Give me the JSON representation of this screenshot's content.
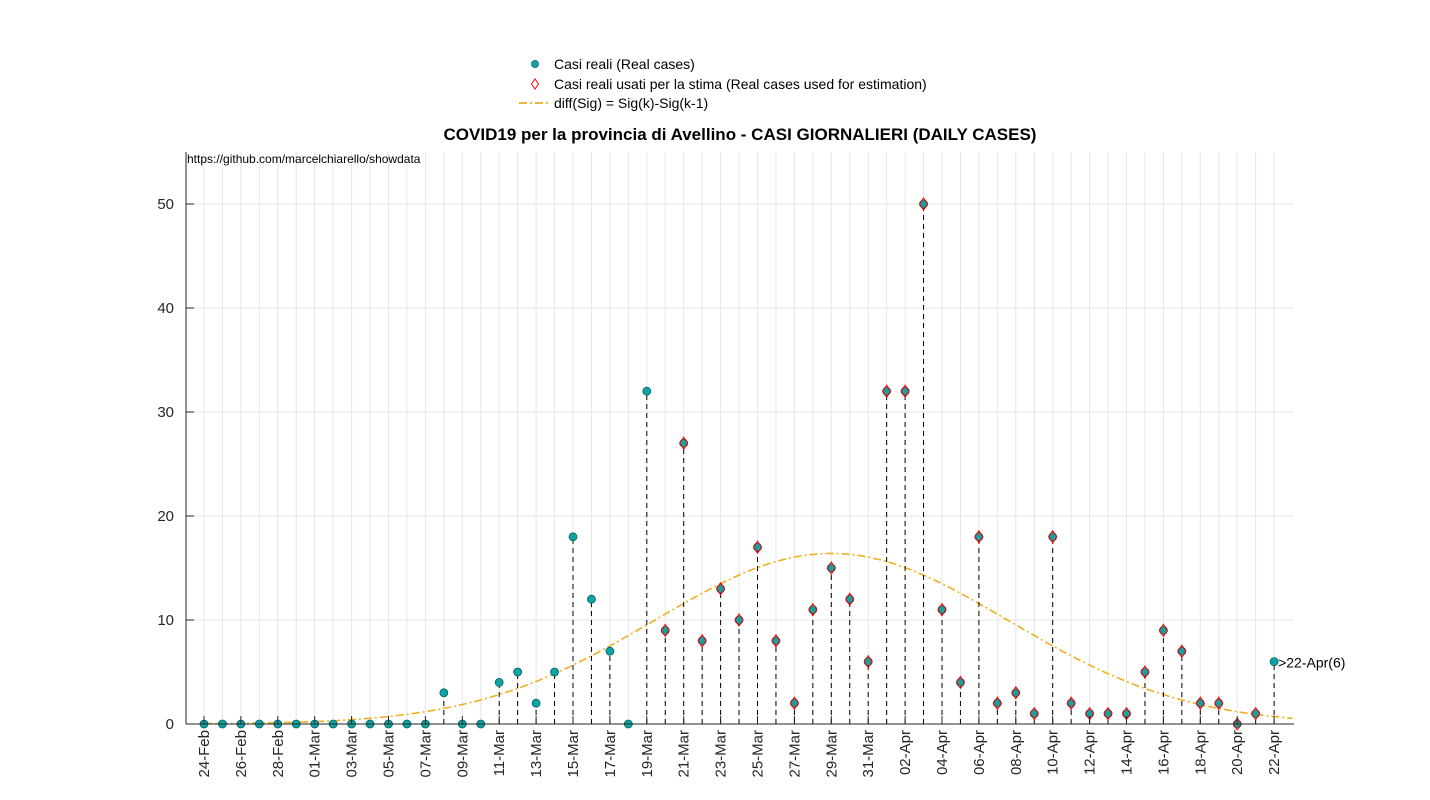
{
  "chart_data": {
    "type": "scatter",
    "title": "COVID19 per la provincia di Avellino - CASI GIORNALIERI (DAILY CASES)",
    "source_text": "https://github.com/marcelchiarello/showdata",
    "xlabel": "",
    "ylabel": "",
    "ylim": [
      0,
      55
    ],
    "yticks": [
      0,
      10,
      20,
      30,
      40,
      50
    ],
    "grid": true,
    "legend_position": "top-center",
    "dates": [
      "24-Feb",
      "25-Feb",
      "26-Feb",
      "27-Feb",
      "28-Feb",
      "29-Feb",
      "01-Mar",
      "02-Mar",
      "03-Mar",
      "04-Mar",
      "05-Mar",
      "06-Mar",
      "07-Mar",
      "08-Mar",
      "09-Mar",
      "10-Mar",
      "11-Mar",
      "12-Mar",
      "13-Mar",
      "14-Mar",
      "15-Mar",
      "16-Mar",
      "17-Mar",
      "18-Mar",
      "19-Mar",
      "20-Mar",
      "21-Mar",
      "22-Mar",
      "23-Mar",
      "24-Mar",
      "25-Mar",
      "26-Mar",
      "27-Mar",
      "28-Mar",
      "29-Mar",
      "30-Mar",
      "31-Mar",
      "01-Apr",
      "02-Apr",
      "03-Apr",
      "04-Apr",
      "05-Apr",
      "06-Apr",
      "07-Apr",
      "08-Apr",
      "09-Apr",
      "10-Apr",
      "11-Apr",
      "12-Apr",
      "13-Apr",
      "14-Apr",
      "15-Apr",
      "16-Apr",
      "17-Apr",
      "18-Apr",
      "19-Apr",
      "20-Apr",
      "21-Apr",
      "22-Apr"
    ],
    "xtick_labels": [
      "24-Feb",
      "26-Feb",
      "28-Feb",
      "01-Mar",
      "03-Mar",
      "05-Mar",
      "07-Mar",
      "09-Mar",
      "11-Mar",
      "13-Mar",
      "15-Mar",
      "17-Mar",
      "19-Mar",
      "21-Mar",
      "23-Mar",
      "25-Mar",
      "27-Mar",
      "29-Mar",
      "31-Mar",
      "02-Apr",
      "04-Apr",
      "06-Apr",
      "08-Apr",
      "10-Apr",
      "12-Apr",
      "14-Apr",
      "16-Apr",
      "18-Apr",
      "20-Apr",
      "22-Apr"
    ],
    "series": [
      {
        "name": "Casi reali (Real cases)",
        "color": "#0fa3a3",
        "marker": "circle",
        "values": [
          0,
          0,
          0,
          0,
          0,
          0,
          0,
          0,
          0,
          0,
          0,
          0,
          0,
          3,
          0,
          0,
          4,
          5,
          2,
          5,
          18,
          12,
          7,
          0,
          32,
          9,
          27,
          8,
          13,
          10,
          17,
          8,
          2,
          11,
          15,
          12,
          6,
          32,
          32,
          50,
          11,
          4,
          18,
          2,
          3,
          1,
          18,
          2,
          1,
          1,
          1,
          5,
          9,
          7,
          2,
          2,
          0,
          1,
          6
        ]
      },
      {
        "name": "Casi reali usati per la stima (Real cases used for estimation)",
        "color": "#ff0000",
        "marker": "diamond",
        "from_date": "20-Mar",
        "to_date": "21-Apr",
        "values": [
          9,
          27,
          8,
          13,
          10,
          17,
          8,
          2,
          11,
          15,
          12,
          6,
          32,
          32,
          50,
          11,
          4,
          18,
          2,
          3,
          1,
          18,
          2,
          1,
          1,
          1,
          5,
          9,
          7,
          2,
          2,
          0,
          1
        ]
      },
      {
        "name": "diff(Sig) = Sig(k)-Sig(k-1)",
        "color": "#edb120",
        "line_style": "dash-dot",
        "curve": {
          "peak_value": 16.4,
          "peak_date": "29-Mar",
          "sigma_days": 9.6
        }
      }
    ],
    "annotation": ">22-Apr(6)"
  },
  "colors": {
    "grid": "#e6e6e6",
    "axis": "#262626",
    "stem": "#000000"
  }
}
